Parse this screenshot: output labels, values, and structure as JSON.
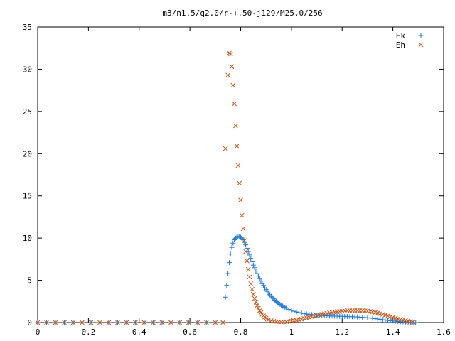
{
  "chart_data": {
    "type": "scatter",
    "title": "m3/n1.5/q2.0/r-+.50-j129/M25.0/256",
    "xlabel": "",
    "ylabel": "",
    "xlim": [
      0,
      1.6
    ],
    "ylim": [
      0,
      35
    ],
    "xticks": [
      0,
      0.2,
      0.4,
      0.6,
      0.8,
      1,
      1.2,
      1.4,
      1.6
    ],
    "xtick_labels": [
      "0",
      "0.2",
      "0.4",
      "0.6",
      "0.8",
      "1",
      "1.2",
      "1.4",
      "1.6"
    ],
    "yticks": [
      0,
      5,
      10,
      15,
      20,
      25,
      30,
      35
    ],
    "ytick_labels": [
      "0",
      "5",
      "10",
      "15",
      "20",
      "25",
      "30",
      "35"
    ],
    "grid": false,
    "legend_position": "top-right",
    "series": [
      {
        "name": "Ek",
        "marker": "plus",
        "color": "#1f77d4",
        "x": [
          0.0,
          0.035,
          0.07,
          0.105,
          0.14,
          0.175,
          0.21,
          0.245,
          0.28,
          0.315,
          0.35,
          0.385,
          0.42,
          0.455,
          0.49,
          0.525,
          0.56,
          0.595,
          0.63,
          0.665,
          0.7,
          0.73,
          0.74,
          0.745,
          0.75,
          0.755,
          0.76,
          0.765,
          0.77,
          0.775,
          0.78,
          0.785,
          0.79,
          0.795,
          0.8,
          0.805,
          0.81,
          0.815,
          0.82,
          0.825,
          0.83,
          0.835,
          0.84,
          0.845,
          0.85,
          0.855,
          0.86,
          0.865,
          0.87,
          0.875,
          0.88,
          0.885,
          0.89,
          0.895,
          0.9,
          0.905,
          0.91,
          0.915,
          0.92,
          0.925,
          0.93,
          0.935,
          0.94,
          0.945,
          0.95,
          0.955,
          0.96,
          0.965,
          0.97,
          0.975,
          0.98,
          0.99,
          1.0,
          1.01,
          1.02,
          1.03,
          1.04,
          1.05,
          1.06,
          1.07,
          1.08,
          1.09,
          1.1,
          1.11,
          1.12,
          1.13,
          1.14,
          1.15,
          1.16,
          1.17,
          1.18,
          1.19,
          1.2,
          1.21,
          1.22,
          1.23,
          1.24,
          1.25,
          1.26,
          1.27,
          1.28,
          1.29,
          1.3,
          1.31,
          1.32,
          1.33,
          1.34,
          1.35,
          1.36,
          1.37,
          1.38,
          1.39,
          1.4,
          1.41,
          1.42,
          1.43,
          1.44,
          1.45,
          1.46,
          1.47,
          1.48,
          1.49
        ],
        "y": [
          0,
          0,
          0,
          0,
          0,
          0,
          0,
          0,
          0,
          0,
          0,
          0,
          0,
          0,
          0,
          0,
          0,
          0,
          0,
          0,
          0,
          0,
          3.0,
          4.4,
          5.8,
          7.1,
          8.1,
          8.9,
          9.4,
          9.8,
          10.0,
          10.1,
          10.2,
          10.2,
          10.1,
          10.0,
          9.8,
          9.5,
          9.2,
          8.8,
          8.4,
          8.0,
          7.6,
          7.2,
          6.8,
          6.5,
          6.1,
          5.8,
          5.5,
          5.2,
          4.9,
          4.6,
          4.4,
          4.1,
          3.9,
          3.7,
          3.5,
          3.3,
          3.1,
          2.95,
          2.8,
          2.65,
          2.5,
          2.38,
          2.26,
          2.15,
          2.05,
          1.95,
          1.86,
          1.78,
          1.7,
          1.56,
          1.44,
          1.34,
          1.26,
          1.18,
          1.12,
          1.06,
          1.01,
          0.97,
          0.93,
          0.9,
          0.87,
          0.85,
          0.83,
          0.81,
          0.8,
          0.78,
          0.77,
          0.76,
          0.75,
          0.74,
          0.73,
          0.72,
          0.71,
          0.7,
          0.69,
          0.68,
          0.66,
          0.64,
          0.62,
          0.59,
          0.56,
          0.53,
          0.5,
          0.46,
          0.42,
          0.38,
          0.34,
          0.3,
          0.26,
          0.22,
          0.19,
          0.16,
          0.13,
          0.1,
          0.08,
          0.06,
          0.04,
          0.02,
          0.01,
          0.0
        ]
      },
      {
        "name": "Eh",
        "marker": "cross",
        "color": "#c0561c",
        "x": [
          0.0,
          0.035,
          0.07,
          0.105,
          0.14,
          0.175,
          0.21,
          0.245,
          0.28,
          0.315,
          0.35,
          0.385,
          0.42,
          0.455,
          0.49,
          0.525,
          0.56,
          0.595,
          0.63,
          0.665,
          0.7,
          0.73,
          0.74,
          0.75,
          0.755,
          0.76,
          0.765,
          0.77,
          0.775,
          0.78,
          0.785,
          0.79,
          0.795,
          0.8,
          0.805,
          0.81,
          0.815,
          0.82,
          0.825,
          0.83,
          0.835,
          0.84,
          0.845,
          0.85,
          0.855,
          0.86,
          0.865,
          0.87,
          0.875,
          0.88,
          0.885,
          0.89,
          0.895,
          0.9,
          0.905,
          0.91,
          0.92,
          0.93,
          0.94,
          0.95,
          0.96,
          0.97,
          0.98,
          0.99,
          1.0,
          1.01,
          1.02,
          1.03,
          1.04,
          1.05,
          1.06,
          1.07,
          1.08,
          1.09,
          1.1,
          1.11,
          1.12,
          1.13,
          1.14,
          1.15,
          1.16,
          1.17,
          1.18,
          1.19,
          1.2,
          1.21,
          1.22,
          1.23,
          1.24,
          1.25,
          1.26,
          1.27,
          1.28,
          1.29,
          1.3,
          1.31,
          1.32,
          1.33,
          1.34,
          1.35,
          1.36,
          1.37,
          1.38,
          1.39,
          1.4,
          1.41,
          1.42,
          1.43,
          1.44,
          1.45,
          1.46,
          1.47,
          1.48
        ],
        "y": [
          0,
          0,
          0,
          0,
          0,
          0,
          0,
          0,
          0,
          0,
          0,
          0,
          0,
          0,
          0,
          0,
          0,
          0,
          0,
          0,
          0,
          0,
          20.6,
          29.3,
          31.9,
          31.8,
          30.3,
          28.1,
          25.9,
          23.3,
          20.9,
          18.6,
          16.5,
          14.5,
          12.7,
          11.1,
          9.7,
          8.4,
          7.3,
          6.3,
          5.4,
          4.6,
          3.95,
          3.35,
          2.85,
          2.4,
          2.02,
          1.7,
          1.42,
          1.18,
          0.98,
          0.8,
          0.65,
          0.52,
          0.42,
          0.33,
          0.22,
          0.15,
          0.1,
          0.08,
          0.07,
          0.08,
          0.1,
          0.13,
          0.17,
          0.22,
          0.28,
          0.34,
          0.41,
          0.48,
          0.55,
          0.62,
          0.69,
          0.76,
          0.83,
          0.9,
          0.97,
          1.03,
          1.09,
          1.14,
          1.19,
          1.24,
          1.28,
          1.31,
          1.34,
          1.37,
          1.39,
          1.4,
          1.41,
          1.42,
          1.42,
          1.41,
          1.4,
          1.38,
          1.35,
          1.31,
          1.26,
          1.2,
          1.13,
          1.05,
          0.97,
          0.88,
          0.79,
          0.7,
          0.61,
          0.52,
          0.44,
          0.36,
          0.29,
          0.22,
          0.16,
          0.1,
          0.05
        ]
      }
    ]
  }
}
